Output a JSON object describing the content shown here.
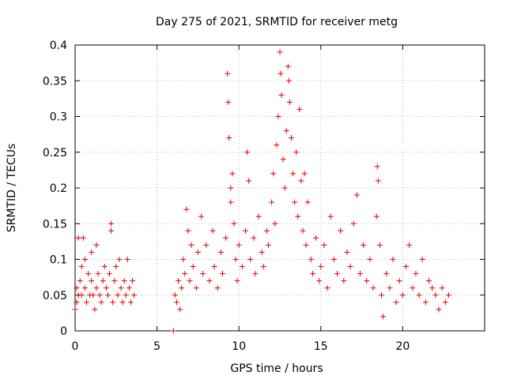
{
  "chart_data": {
    "type": "scatter",
    "title": "Day 275 of 2021, SRMTID for receiver metg",
    "xlabel": "GPS time / hours",
    "ylabel": "SRMTID / TECUs",
    "xlim": [
      0,
      25
    ],
    "ylim": [
      0,
      0.4
    ],
    "xticks": [
      0,
      5,
      10,
      15,
      20
    ],
    "xtick_labels": [
      "0",
      "5",
      "10",
      "15",
      "20"
    ],
    "yticks": [
      0,
      0.05,
      0.1,
      0.15,
      0.2,
      0.25,
      0.3,
      0.35,
      0.4
    ],
    "ytick_labels": [
      "0",
      "0.05",
      "0.1",
      "0.15",
      "0.2",
      "0.25",
      "0.3",
      "0.35",
      "0.4"
    ],
    "grid": true,
    "marker": "+",
    "color": "#e00000",
    "series": [
      {
        "name": "SRMTID",
        "points": [
          [
            0.0,
            0.03
          ],
          [
            0.1,
            0.04
          ],
          [
            0.1,
            0.06
          ],
          [
            0.2,
            0.05
          ],
          [
            0.2,
            0.13
          ],
          [
            0.3,
            0.07
          ],
          [
            0.4,
            0.05
          ],
          [
            0.4,
            0.09
          ],
          [
            0.5,
            0.13
          ],
          [
            0.6,
            0.06
          ],
          [
            0.6,
            0.1
          ],
          [
            0.7,
            0.04
          ],
          [
            0.8,
            0.08
          ],
          [
            0.9,
            0.05
          ],
          [
            1.0,
            0.11
          ],
          [
            1.0,
            0.07
          ],
          [
            1.1,
            0.05
          ],
          [
            1.2,
            0.03
          ],
          [
            1.3,
            0.12
          ],
          [
            1.3,
            0.06
          ],
          [
            1.4,
            0.08
          ],
          [
            1.5,
            0.05
          ],
          [
            1.6,
            0.04
          ],
          [
            1.7,
            0.07
          ],
          [
            1.8,
            0.09
          ],
          [
            1.9,
            0.06
          ],
          [
            2.0,
            0.05
          ],
          [
            2.1,
            0.08
          ],
          [
            2.2,
            0.15
          ],
          [
            2.2,
            0.14
          ],
          [
            2.3,
            0.04
          ],
          [
            2.4,
            0.07
          ],
          [
            2.5,
            0.09
          ],
          [
            2.6,
            0.05
          ],
          [
            2.7,
            0.1
          ],
          [
            2.8,
            0.06
          ],
          [
            2.9,
            0.04
          ],
          [
            3.0,
            0.07
          ],
          [
            3.1,
            0.05
          ],
          [
            3.2,
            0.1
          ],
          [
            3.3,
            0.06
          ],
          [
            3.4,
            0.04
          ],
          [
            3.5,
            0.07
          ],
          [
            3.6,
            0.05
          ],
          [
            6.0,
            0.0
          ],
          [
            6.1,
            0.05
          ],
          [
            6.2,
            0.04
          ],
          [
            6.3,
            0.07
          ],
          [
            6.4,
            0.03
          ],
          [
            6.5,
            0.06
          ],
          [
            6.6,
            0.1
          ],
          [
            6.7,
            0.08
          ],
          [
            6.8,
            0.17
          ],
          [
            6.9,
            0.14
          ],
          [
            7.0,
            0.07
          ],
          [
            7.1,
            0.12
          ],
          [
            7.2,
            0.09
          ],
          [
            7.4,
            0.06
          ],
          [
            7.5,
            0.11
          ],
          [
            7.7,
            0.16
          ],
          [
            7.8,
            0.08
          ],
          [
            8.0,
            0.12
          ],
          [
            8.2,
            0.07
          ],
          [
            8.4,
            0.14
          ],
          [
            8.5,
            0.09
          ],
          [
            8.7,
            0.06
          ],
          [
            8.9,
            0.11
          ],
          [
            9.0,
            0.08
          ],
          [
            9.2,
            0.13
          ],
          [
            9.3,
            0.36
          ],
          [
            9.35,
            0.32
          ],
          [
            9.4,
            0.27
          ],
          [
            9.5,
            0.2
          ],
          [
            9.5,
            0.18
          ],
          [
            9.6,
            0.22
          ],
          [
            9.7,
            0.15
          ],
          [
            9.8,
            0.1
          ],
          [
            9.9,
            0.07
          ],
          [
            10.0,
            0.12
          ],
          [
            10.2,
            0.09
          ],
          [
            10.4,
            0.14
          ],
          [
            10.5,
            0.25
          ],
          [
            10.6,
            0.21
          ],
          [
            10.7,
            0.1
          ],
          [
            10.9,
            0.13
          ],
          [
            11.0,
            0.08
          ],
          [
            11.2,
            0.16
          ],
          [
            11.4,
            0.11
          ],
          [
            11.5,
            0.09
          ],
          [
            11.7,
            0.14
          ],
          [
            11.8,
            0.12
          ],
          [
            12.0,
            0.18
          ],
          [
            12.1,
            0.22
          ],
          [
            12.2,
            0.15
          ],
          [
            12.3,
            0.26
          ],
          [
            12.4,
            0.3
          ],
          [
            12.5,
            0.39
          ],
          [
            12.55,
            0.36
          ],
          [
            12.6,
            0.33
          ],
          [
            12.7,
            0.24
          ],
          [
            12.8,
            0.2
          ],
          [
            12.9,
            0.28
          ],
          [
            13.0,
            0.37
          ],
          [
            13.05,
            0.35
          ],
          [
            13.1,
            0.32
          ],
          [
            13.2,
            0.27
          ],
          [
            13.3,
            0.22
          ],
          [
            13.4,
            0.18
          ],
          [
            13.5,
            0.25
          ],
          [
            13.6,
            0.16
          ],
          [
            13.7,
            0.31
          ],
          [
            13.8,
            0.21
          ],
          [
            13.9,
            0.14
          ],
          [
            14.0,
            0.22
          ],
          [
            14.1,
            0.12
          ],
          [
            14.2,
            0.18
          ],
          [
            14.4,
            0.1
          ],
          [
            14.5,
            0.08
          ],
          [
            14.7,
            0.13
          ],
          [
            14.9,
            0.07
          ],
          [
            15.0,
            0.09
          ],
          [
            15.2,
            0.12
          ],
          [
            15.4,
            0.06
          ],
          [
            15.6,
            0.16
          ],
          [
            15.8,
            0.1
          ],
          [
            16.0,
            0.08
          ],
          [
            16.2,
            0.14
          ],
          [
            16.4,
            0.07
          ],
          [
            16.6,
            0.11
          ],
          [
            16.8,
            0.09
          ],
          [
            17.0,
            0.15
          ],
          [
            17.2,
            0.19
          ],
          [
            17.4,
            0.08
          ],
          [
            17.6,
            0.12
          ],
          [
            17.8,
            0.07
          ],
          [
            18.0,
            0.1
          ],
          [
            18.2,
            0.06
          ],
          [
            18.4,
            0.16
          ],
          [
            18.45,
            0.23
          ],
          [
            18.5,
            0.21
          ],
          [
            18.6,
            0.12
          ],
          [
            18.7,
            0.05
          ],
          [
            18.8,
            0.02
          ],
          [
            19.0,
            0.08
          ],
          [
            19.2,
            0.06
          ],
          [
            19.4,
            0.1
          ],
          [
            19.6,
            0.04
          ],
          [
            19.8,
            0.07
          ],
          [
            20.0,
            0.05
          ],
          [
            20.2,
            0.09
          ],
          [
            20.4,
            0.12
          ],
          [
            20.6,
            0.06
          ],
          [
            20.8,
            0.08
          ],
          [
            21.0,
            0.05
          ],
          [
            21.2,
            0.1
          ],
          [
            21.4,
            0.04
          ],
          [
            21.6,
            0.07
          ],
          [
            21.8,
            0.06
          ],
          [
            22.0,
            0.05
          ],
          [
            22.2,
            0.03
          ],
          [
            22.4,
            0.06
          ],
          [
            22.6,
            0.04
          ],
          [
            22.8,
            0.05
          ]
        ]
      }
    ]
  }
}
